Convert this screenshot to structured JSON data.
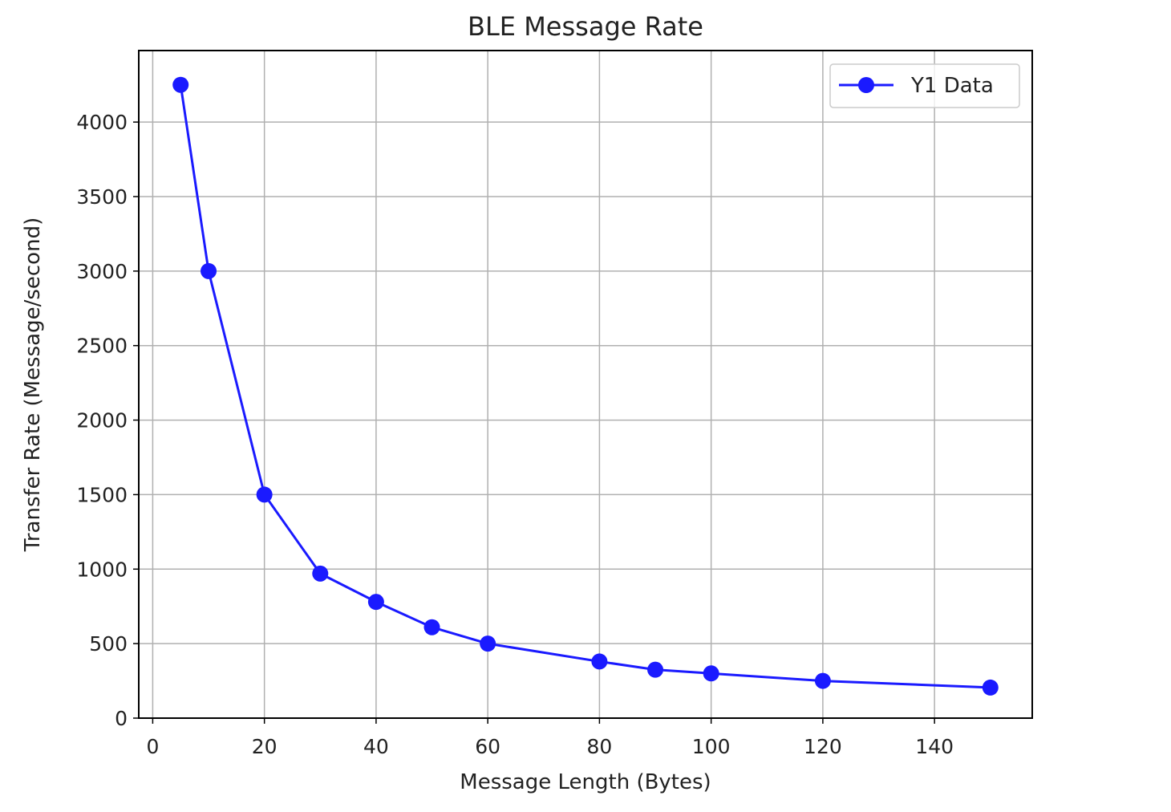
{
  "chart_data": {
    "type": "line",
    "title": "BLE Message Rate",
    "xlabel": "Message Length (Bytes)",
    "ylabel": "Transfer Rate (Message/second)",
    "xlim": [
      -2.5,
      157.5
    ],
    "ylim": [
      0,
      4480
    ],
    "xticks": [
      0,
      20,
      40,
      60,
      80,
      100,
      120,
      140
    ],
    "yticks": [
      0,
      500,
      1000,
      1500,
      2000,
      2500,
      3000,
      3500,
      4000
    ],
    "grid": true,
    "legend_position": "top-right",
    "series": [
      {
        "name": "Y1 Data",
        "color": "#1a1aff",
        "marker": "circle",
        "x": [
          5,
          10,
          20,
          30,
          40,
          50,
          60,
          80,
          90,
          100,
          120,
          150
        ],
        "y": [
          4250,
          3000,
          1500,
          970,
          780,
          610,
          500,
          380,
          325,
          300,
          250,
          205
        ]
      }
    ]
  }
}
